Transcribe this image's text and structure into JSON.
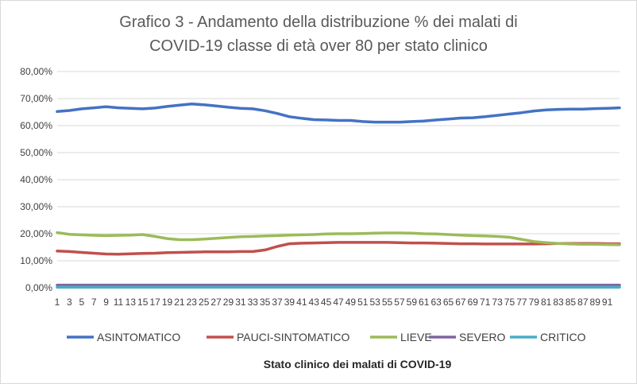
{
  "chart_data": {
    "type": "line",
    "title_line1": "Grafico 3 - Andamento della distribuzione % dei malati di",
    "title_line2": "COVID-19 classe di età over 80 per stato clinico",
    "xlabel": "Stato clinico dei malati di COVID-19",
    "ylabel": "",
    "ylim": [
      0,
      0.8
    ],
    "yticks": [
      0,
      0.1,
      0.2,
      0.3,
      0.4,
      0.5,
      0.6,
      0.7,
      0.8
    ],
    "ytick_labels": [
      "0,00%",
      "10,00%",
      "20,00%",
      "30,00%",
      "40,00%",
      "50,00%",
      "60,00%",
      "70,00%",
      "80,00%"
    ],
    "x_range": [
      1,
      93
    ],
    "x_tick_labels": [
      "1",
      "3",
      "5",
      "7",
      "9",
      "11",
      "13",
      "15",
      "17",
      "19",
      "21",
      "23",
      "25",
      "27",
      "29",
      "31",
      "33",
      "35",
      "37",
      "39",
      "41",
      "43",
      "45",
      "47",
      "49",
      "51",
      "53",
      "55",
      "57",
      "59",
      "61",
      "63",
      "65",
      "67",
      "69",
      "71",
      "73",
      "75",
      "77",
      "79",
      "81",
      "83",
      "85",
      "87",
      "89",
      "91"
    ],
    "grid": true,
    "legend_position": "bottom",
    "series": [
      {
        "name": "ASINTOMATICO",
        "color": "#4472C4",
        "x": [
          1,
          3,
          5,
          7,
          9,
          11,
          13,
          15,
          17,
          19,
          21,
          23,
          25,
          27,
          29,
          31,
          33,
          35,
          37,
          39,
          41,
          43,
          45,
          47,
          49,
          51,
          53,
          55,
          57,
          59,
          61,
          63,
          65,
          67,
          69,
          71,
          73,
          75,
          77,
          79,
          81,
          83,
          85,
          87,
          89,
          91,
          93
        ],
        "values": [
          0.652,
          0.656,
          0.662,
          0.666,
          0.67,
          0.666,
          0.664,
          0.662,
          0.665,
          0.671,
          0.676,
          0.68,
          0.677,
          0.673,
          0.668,
          0.664,
          0.662,
          0.655,
          0.645,
          0.633,
          0.627,
          0.622,
          0.621,
          0.619,
          0.619,
          0.615,
          0.613,
          0.613,
          0.613,
          0.615,
          0.617,
          0.621,
          0.624,
          0.628,
          0.629,
          0.633,
          0.638,
          0.643,
          0.648,
          0.654,
          0.658,
          0.66,
          0.661,
          0.661,
          0.663,
          0.664,
          0.666
        ]
      },
      {
        "name": "PAUCI-SINTOMATICO",
        "color": "#C0504D",
        "x": [
          1,
          3,
          5,
          7,
          9,
          11,
          13,
          15,
          17,
          19,
          21,
          23,
          25,
          27,
          29,
          31,
          33,
          35,
          37,
          39,
          41,
          43,
          45,
          47,
          49,
          51,
          53,
          55,
          57,
          59,
          61,
          63,
          65,
          67,
          69,
          71,
          73,
          75,
          77,
          79,
          81,
          83,
          85,
          87,
          89,
          91,
          93
        ],
        "values": [
          0.136,
          0.134,
          0.131,
          0.128,
          0.125,
          0.124,
          0.126,
          0.127,
          0.128,
          0.13,
          0.131,
          0.132,
          0.133,
          0.133,
          0.133,
          0.134,
          0.134,
          0.14,
          0.153,
          0.163,
          0.165,
          0.166,
          0.167,
          0.168,
          0.168,
          0.168,
          0.168,
          0.168,
          0.167,
          0.166,
          0.166,
          0.165,
          0.164,
          0.163,
          0.163,
          0.162,
          0.162,
          0.162,
          0.162,
          0.162,
          0.163,
          0.164,
          0.164,
          0.164,
          0.164,
          0.163,
          0.163
        ]
      },
      {
        "name": "LIEVE",
        "color": "#9BBB59",
        "x": [
          1,
          3,
          5,
          7,
          9,
          11,
          13,
          15,
          17,
          19,
          21,
          23,
          25,
          27,
          29,
          31,
          33,
          35,
          37,
          39,
          41,
          43,
          45,
          47,
          49,
          51,
          53,
          55,
          57,
          59,
          61,
          63,
          65,
          67,
          69,
          71,
          73,
          75,
          77,
          79,
          81,
          83,
          85,
          87,
          89,
          91,
          93
        ],
        "values": [
          0.204,
          0.198,
          0.196,
          0.194,
          0.193,
          0.194,
          0.195,
          0.197,
          0.19,
          0.182,
          0.178,
          0.178,
          0.18,
          0.183,
          0.186,
          0.189,
          0.19,
          0.192,
          0.193,
          0.195,
          0.196,
          0.197,
          0.199,
          0.2,
          0.2,
          0.201,
          0.202,
          0.203,
          0.203,
          0.202,
          0.2,
          0.199,
          0.197,
          0.195,
          0.193,
          0.192,
          0.19,
          0.187,
          0.179,
          0.171,
          0.167,
          0.164,
          0.162,
          0.161,
          0.161,
          0.16,
          0.159
        ]
      },
      {
        "name": "SEVERO",
        "color": "#8064A2",
        "x": [
          1,
          93
        ],
        "values": [
          0.01,
          0.01
        ]
      },
      {
        "name": "CRITICO",
        "color": "#4BACC6",
        "x": [
          1,
          93
        ],
        "values": [
          0.002,
          0.002
        ]
      }
    ]
  }
}
